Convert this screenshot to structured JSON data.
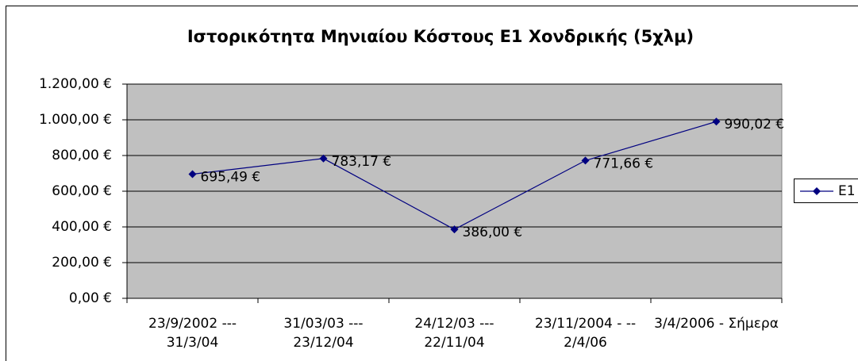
{
  "chart_data": {
    "type": "line",
    "title": "Ιστορικότητα Μηνιαίου Κόστους Ε1 Χονδρικής (5χλμ)",
    "categories": [
      "23/9/2002 --- 31/3/04",
      "31/03/03 --- 23/12/04",
      "24/12/03 --- 22/11/04",
      "23/11/2004 - -- 2/4/06",
      "3/4/2006 - Σήμερα"
    ],
    "series": [
      {
        "name": "E1",
        "color": "#000080",
        "values": [
          695.49,
          783.17,
          386.0,
          771.66,
          990.02
        ],
        "value_labels": [
          "695,49 €",
          "783,17 €",
          "386,00 €",
          "771,66 €",
          "990,02 €"
        ]
      }
    ],
    "ylim": [
      0,
      1200
    ],
    "yticks": [
      {
        "value": 0,
        "label": "0,00 €"
      },
      {
        "value": 200,
        "label": "200,00 €"
      },
      {
        "value": 400,
        "label": "400,00 €"
      },
      {
        "value": 600,
        "label": "600,00 €"
      },
      {
        "value": 800,
        "label": "800,00 €"
      },
      {
        "value": 1000,
        "label": "1.000,00 €"
      },
      {
        "value": 1200,
        "label": "1.200,00 €"
      }
    ],
    "grid": true,
    "legend": "right",
    "plot_background": "#c0c0c0"
  }
}
